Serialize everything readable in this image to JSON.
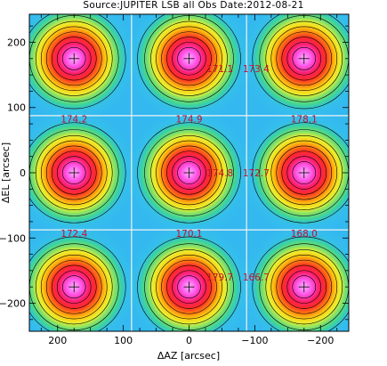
{
  "title": "Source:JUPITER LSB all Obs Date:2012-08-21",
  "chart_data": {
    "type": "heatmap",
    "xlabel": "ΔAZ [arcsec]",
    "ylabel": "ΔEL [arcsec]",
    "xlim": [
      243,
      -243
    ],
    "ylim": [
      -243,
      243
    ],
    "x_ticks": [
      200,
      100,
      0,
      -100,
      -200
    ],
    "x_tick_labels": [
      "200",
      "100",
      "0",
      "−100",
      "−200"
    ],
    "y_ticks": [
      200,
      100,
      0,
      -100,
      -200
    ],
    "y_tick_labels": [
      "200",
      "100",
      "0",
      "−100",
      "−200"
    ],
    "grid": true,
    "beam_centers_x": [
      175,
      0,
      -175
    ],
    "beam_centers_y": [
      175,
      0,
      -175
    ],
    "values": [
      [
        null,
        171.1,
        173.4
      ],
      [
        174.2,
        174.9,
        178.1
      ],
      [
        null,
        174.8,
        172.7
      ],
      [
        172.4,
        170.1,
        168.0
      ],
      [
        null,
        179.7,
        166.7
      ]
    ],
    "colors": {
      "background": "#33b8f0",
      "value_text": "#c8102e"
    }
  }
}
